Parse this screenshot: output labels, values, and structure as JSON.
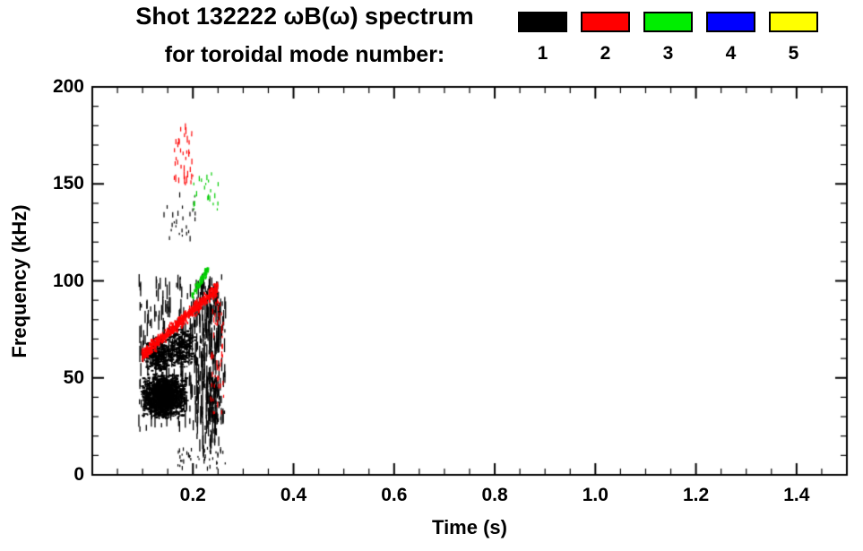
{
  "chart_data": {
    "type": "scatter",
    "title_line1": "Shot 132222 ωB(ω) spectrum",
    "title_line2": "for toroidal mode number:",
    "xlabel": "Time (s)",
    "ylabel": "Frequency (kHz)",
    "xlim": [
      0,
      1.5
    ],
    "ylim": [
      0,
      200
    ],
    "xticks": [
      0.2,
      0.4,
      0.6,
      0.8,
      1.0,
      1.2,
      1.4
    ],
    "xtick_labels": [
      "0.2",
      "0.4",
      "0.6",
      "0.8",
      "1.0",
      "1.2",
      "1.4"
    ],
    "yticks": [
      0,
      50,
      100,
      150,
      200
    ],
    "ytick_labels": [
      "0",
      "50",
      "100",
      "150",
      "200"
    ],
    "x_minor_step": 0.05,
    "y_minor_step": 10,
    "grid": false,
    "legend_position": "top-right",
    "legend": [
      {
        "label": "1",
        "color": "#000000"
      },
      {
        "label": "2",
        "color": "#ff0000"
      },
      {
        "label": "3",
        "color": "#00ee00"
      },
      {
        "label": "4",
        "color": "#0000ff"
      },
      {
        "label": "5",
        "color": "#ffff00"
      }
    ],
    "series": [
      {
        "name": "n=1",
        "color": "#000000",
        "clusters": [
          {
            "type": "blob",
            "t": [
              0.094,
              0.185
            ],
            "f": [
              29,
              53
            ],
            "n": 1500
          },
          {
            "type": "blob",
            "t": [
              0.1,
              0.16
            ],
            "f": [
              52,
              72
            ],
            "n": 320
          },
          {
            "type": "blob",
            "t": [
              0.145,
              0.205
            ],
            "f": [
              55,
              78
            ],
            "n": 280
          },
          {
            "type": "streaks",
            "t": [
              0.092,
              0.265
            ],
            "f": [
              22,
              104
            ],
            "n": 340,
            "dash": [
              1.5,
              9
            ]
          },
          {
            "type": "streaks",
            "t": [
              0.205,
              0.252
            ],
            "f": [
              8,
              100
            ],
            "n": 150,
            "dash": [
              2,
              12
            ]
          },
          {
            "type": "specks",
            "t": [
              0.14,
              0.205
            ],
            "f": [
              120,
              143
            ],
            "n": 26,
            "dash": [
              1,
              3
            ]
          },
          {
            "type": "specks",
            "t": [
              0.17,
              0.265
            ],
            "f": [
              1,
              13
            ],
            "n": 42,
            "dash": [
              0.8,
              2.5
            ]
          },
          {
            "type": "specks",
            "t": [
              0.225,
              0.252
            ],
            "f": [
              20,
              50
            ],
            "n": 70,
            "dash": [
              1,
              4
            ]
          }
        ]
      },
      {
        "name": "n=2",
        "color": "#ff0000",
        "clusters": [
          {
            "type": "band",
            "t": [
              0.098,
              0.247
            ],
            "f0": 62,
            "f1": 97,
            "spread": 3.2,
            "n": 650
          },
          {
            "type": "specks",
            "t": [
              0.163,
              0.2
            ],
            "f": [
              148,
              178
            ],
            "n": 38,
            "dash": [
              1,
              4
            ]
          },
          {
            "type": "specks",
            "t": [
              0.235,
              0.262
            ],
            "f": [
              30,
              96
            ],
            "n": 55,
            "dash": [
              1,
              3
            ]
          }
        ]
      },
      {
        "name": "n=3",
        "color": "#00cc00",
        "clusters": [
          {
            "type": "band",
            "t": [
              0.196,
              0.228
            ],
            "f0": 92,
            "f1": 107,
            "spread": 1.8,
            "n": 95
          },
          {
            "type": "specks",
            "t": [
              0.2,
              0.252
            ],
            "f": [
              136,
              155
            ],
            "n": 22,
            "dash": [
              1,
              3
            ]
          }
        ]
      },
      {
        "name": "n=4",
        "color": "#0000ff",
        "clusters": []
      },
      {
        "name": "n=5",
        "color": "#ffff00",
        "clusters": []
      }
    ]
  }
}
